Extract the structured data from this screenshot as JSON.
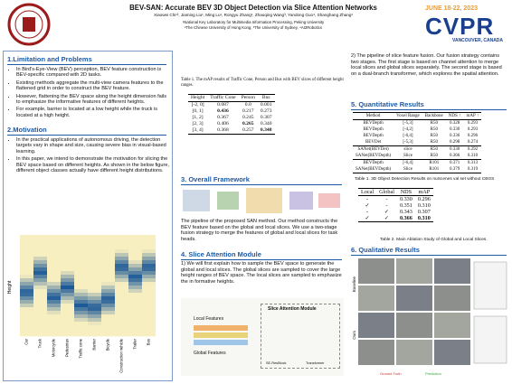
{
  "header": {
    "title": "BEV-SAN: Accurate BEV 3D Object Detection via Slice Attention Networks",
    "authors": "Xiaowei Chi¹², Jiaming Liu¹, Ming Lu¹, Rongyu Zhang¹, Zhaoqing Wang³, Yandong Guo⁴, Shanghang Zhang¹",
    "affiliations": [
      "¹National Key Laboratory for Multimedia Information Processing, Peking University",
      "²The Chinese University of Hong Kong, ³The University of Sydney, ⁴AI2Robotics"
    ]
  },
  "conference": {
    "dates": "JUNE 18-22, 2023",
    "name": "CVPR",
    "location": "VANCOUVER, CANADA"
  },
  "limitation": {
    "heading": "1.Limitation and Problems",
    "bullets": [
      "In Bird's-Eye-View (BEV) perception, BEV feature construction is BEV-specific compared with 2D tasks.",
      "Existing methods aggregate the multi-view camera features to the flattened grid in order to construct the BEV feature.",
      "However, flattening the BEV space along the height dimension fails to emphasize the informative features of different heights.",
      "For example, barrier is located at a low height while the truck is located at a high height."
    ]
  },
  "motivation": {
    "heading": "2.Motivation",
    "bullets": [
      "In the practical applications of autonomous driving, the detection targets vary in shape and size, causing severe bias in visual-based learning.",
      "In this paper, we intend to demonstrate the motivation for slicing the BEV space based on different heights. As shown in the below figure, different object classes actually have different height distributions."
    ]
  },
  "heatmap": {
    "y_label": "Height",
    "categories": [
      "Car",
      "Truck",
      "Motorcycle",
      "Pedestrian",
      "Traffic cone",
      "Barrier",
      "Bicycle",
      "Construction vehicle",
      "Trailer",
      "Bus"
    ]
  },
  "table1": {
    "caption": "Table 1. The mAP results of Traffic Cone, Person and Bus with BEV slices of different height ranges.",
    "columns": [
      "Height",
      "Traffic Cone",
      "Person",
      "Bus"
    ],
    "rows": [
      [
        "[-2, 0]",
        "0.087",
        "0.0",
        "0.001"
      ],
      [
        "[0, 1]",
        "0.436",
        "0.217",
        "0.273"
      ],
      [
        "[1, 2]",
        "0.367",
        "0.245",
        "0.307"
      ],
      [
        "[2, 3]",
        "0.406",
        "0.265",
        "0.340"
      ],
      [
        "[3, 4]",
        "0.368",
        "0.257",
        "0.348"
      ]
    ],
    "bold": [
      [
        1,
        1
      ],
      [
        3,
        2
      ],
      [
        4,
        3
      ]
    ]
  },
  "framework": {
    "heading": "3. Overall Framework",
    "text": "The pipeline of the proposed SAN method. Our method constructs the BEV feature based on the global and local slices. We use a two-stage fusion strategy to merge the features of global and local slices for task heads."
  },
  "slice_attention": {
    "heading": "4. Slice Attention Module",
    "text": "1)  We will first explain how to sample the BEV space to generate the global and local slices. The global slices are sampled to cover the large height ranges of BEV space. The local slices are sampled to emphasize the in formative heights.",
    "figure": {
      "title": "Slice Attention Module",
      "local": "Local Features",
      "global": "Global Features",
      "block": "SE-ResBlock",
      "transformer": "Transformer"
    }
  },
  "fusion": {
    "text": "2)  The pipeline of slice feature fusion. Our fusion strategy contains two stages. The first stage is based on channel attention to merge local slices and global slices separately. The second stage is based on a dual-branch transformer, which explores the spatial attention."
  },
  "quantitative": {
    "heading": "5. Quantitative Results",
    "columns": [
      "Method",
      "Voxel Range",
      "Backbone",
      "NDS ↑",
      "mAP ↑"
    ],
    "rows": [
      [
        "BEVDepth",
        "[-5,3]",
        "R50",
        "0.328",
        "0.293"
      ],
      [
        "BEVDepth",
        "[-4,2]",
        "R50",
        "0.330",
        "0.293"
      ],
      [
        "BEVDepth",
        "[-6,4]",
        "R50",
        "0.336",
        "0.296"
      ],
      [
        "BEVDet",
        "[-5,3]",
        "R50",
        "0.298",
        "0.274"
      ],
      [
        "SANet(BEVDet)",
        "slice",
        "R50",
        "0.330",
        "0.292"
      ],
      [
        "SANet(BEVDepth)",
        "Slice",
        "R50",
        "0.366",
        "0.310"
      ],
      [
        "BEVDepth",
        "[-6,4]",
        "R101",
        "0.371",
        "0.313"
      ],
      [
        "SANet(BEVDepth)",
        "Slice",
        "R101",
        "0.379",
        "0.319"
      ]
    ],
    "caption": "Table 1. 3D Object Detection Results on nuScenes val set without CBGS"
  },
  "ablation": {
    "columns": [
      "Local",
      "Global",
      "NDS",
      "mAP"
    ],
    "rows": [
      [
        "-",
        "-",
        "0.330",
        "0.296"
      ],
      [
        "✓",
        "-",
        "0.351",
        "0.310"
      ],
      [
        "-",
        "✓",
        "0.343",
        "0.307"
      ],
      [
        "✓",
        "✓",
        "0.366",
        "0.310"
      ]
    ],
    "bold": [
      [
        3,
        2
      ],
      [
        3,
        3
      ]
    ],
    "caption": "Table 2. Main Ablation Study of Global and Local Slices."
  },
  "qualitative": {
    "heading": "6. Qualitative Results",
    "row_labels": [
      "Baseline",
      "Ours"
    ],
    "legend": [
      "Ground Truth",
      "Prediction"
    ]
  }
}
